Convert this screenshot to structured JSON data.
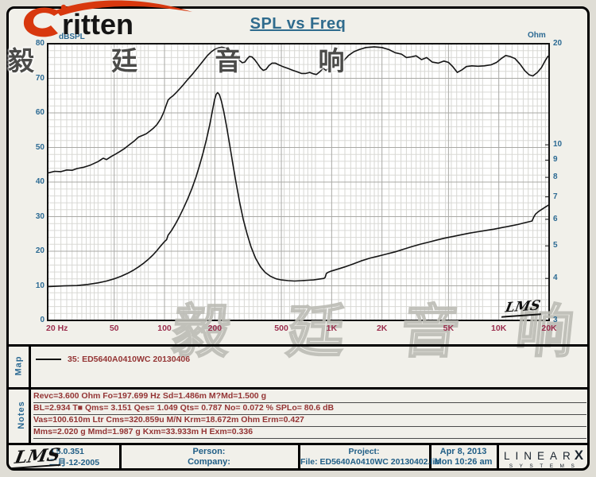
{
  "brand": {
    "logo_text": "ritten",
    "logo_cjk": "毅 廷 音 响"
  },
  "title": "SPL vs Freq",
  "watermark_text": "毅 廷 音 响",
  "chart_data": {
    "type": "line",
    "title": "SPL vs Freq",
    "grid": true,
    "corner_mark": "LMS",
    "x_axis": {
      "scale": "log",
      "unit": "Hz",
      "min": 20,
      "max": 20000,
      "tick_labels": [
        {
          "f": 20,
          "text": "20 Hz"
        },
        {
          "f": 50,
          "text": "50"
        },
        {
          "f": 100,
          "text": "100"
        },
        {
          "f": 200,
          "text": "200"
        },
        {
          "f": 500,
          "text": "500"
        },
        {
          "f": 1000,
          "text": "1K"
        },
        {
          "f": 2000,
          "text": "2K"
        },
        {
          "f": 5000,
          "text": "5K"
        },
        {
          "f": 10000,
          "text": "10K"
        },
        {
          "f": 20000,
          "text": "20K"
        }
      ],
      "major_lines": [
        50,
        100,
        200,
        500,
        1000,
        2000,
        5000,
        10000
      ]
    },
    "y_left": {
      "label": "dBSPL",
      "scale": "linear",
      "min": 0,
      "max": 80,
      "ticks": [
        80,
        70,
        60,
        50,
        40,
        30,
        20,
        10,
        0
      ],
      "minor_step": 2,
      "major_step": 10
    },
    "y_right": {
      "label": "Ohm",
      "scale": "log",
      "min": 3,
      "max": 20,
      "ticks": [
        20,
        10,
        9,
        8,
        7,
        6,
        5,
        4,
        3
      ]
    },
    "series": [
      {
        "name": "35: ED5640A0410WC 20130406 - SPL",
        "axis": "left",
        "color": "#151515",
        "points": [
          [
            20,
            42.6
          ],
          [
            22,
            43.1
          ],
          [
            24,
            43.0
          ],
          [
            26,
            43.5
          ],
          [
            28,
            43.4
          ],
          [
            30,
            43.9
          ],
          [
            33,
            44.3
          ],
          [
            36,
            44.9
          ],
          [
            40,
            45.9
          ],
          [
            43,
            46.9
          ],
          [
            45,
            46.5
          ],
          [
            48,
            47.4
          ],
          [
            51,
            48.1
          ],
          [
            54,
            48.8
          ],
          [
            58,
            49.8
          ],
          [
            62,
            50.9
          ],
          [
            66,
            51.9
          ],
          [
            70,
            53.0
          ],
          [
            74,
            53.5
          ],
          [
            78,
            54.0
          ],
          [
            82,
            54.8
          ],
          [
            86,
            55.6
          ],
          [
            90,
            56.6
          ],
          [
            95,
            58.3
          ],
          [
            99,
            60.2
          ],
          [
            102,
            62.0
          ],
          [
            105,
            63.7
          ],
          [
            108,
            64.3
          ],
          [
            112,
            64.9
          ],
          [
            117,
            65.8
          ],
          [
            123,
            66.9
          ],
          [
            130,
            68.2
          ],
          [
            138,
            69.7
          ],
          [
            147,
            71.2
          ],
          [
            157,
            72.9
          ],
          [
            168,
            74.7
          ],
          [
            180,
            76.5
          ],
          [
            190,
            77.6
          ],
          [
            200,
            78.4
          ],
          [
            210,
            78.8
          ],
          [
            220,
            79.0
          ],
          [
            232,
            78.8
          ],
          [
            245,
            78.3
          ],
          [
            258,
            77.5
          ],
          [
            270,
            76.4
          ],
          [
            282,
            75.1
          ],
          [
            292,
            74.5
          ],
          [
            302,
            74.7
          ],
          [
            312,
            75.6
          ],
          [
            322,
            76.3
          ],
          [
            333,
            76.2
          ],
          [
            346,
            75.4
          ],
          [
            360,
            74.3
          ],
          [
            375,
            73.0
          ],
          [
            390,
            72.3
          ],
          [
            405,
            72.6
          ],
          [
            422,
            73.7
          ],
          [
            440,
            74.4
          ],
          [
            460,
            74.4
          ],
          [
            482,
            73.9
          ],
          [
            510,
            73.4
          ],
          [
            545,
            72.9
          ],
          [
            580,
            72.4
          ],
          [
            620,
            71.9
          ],
          [
            660,
            71.4
          ],
          [
            700,
            71.4
          ],
          [
            740,
            71.7
          ],
          [
            775,
            71.3
          ],
          [
            810,
            71.1
          ],
          [
            850,
            71.9
          ],
          [
            890,
            72.9
          ],
          [
            925,
            72.3
          ],
          [
            965,
            73.0
          ],
          [
            1010,
            74.1
          ],
          [
            1060,
            74.5
          ],
          [
            1120,
            75.2
          ],
          [
            1180,
            75.1
          ],
          [
            1260,
            76.6
          ],
          [
            1360,
            77.7
          ],
          [
            1460,
            78.3
          ],
          [
            1600,
            78.9
          ],
          [
            1800,
            79.1
          ],
          [
            2000,
            78.9
          ],
          [
            2200,
            78.3
          ],
          [
            2400,
            77.4
          ],
          [
            2620,
            77.0
          ],
          [
            2800,
            76.0
          ],
          [
            3000,
            76.2
          ],
          [
            3200,
            76.5
          ],
          [
            3450,
            75.4
          ],
          [
            3700,
            76.0
          ],
          [
            4000,
            74.7
          ],
          [
            4350,
            74.4
          ],
          [
            4700,
            75.0
          ],
          [
            5000,
            74.6
          ],
          [
            5300,
            73.4
          ],
          [
            5650,
            71.7
          ],
          [
            6000,
            72.4
          ],
          [
            6400,
            73.4
          ],
          [
            6900,
            73.6
          ],
          [
            7500,
            73.5
          ],
          [
            8200,
            73.6
          ],
          [
            9000,
            73.9
          ],
          [
            9700,
            74.6
          ],
          [
            10400,
            75.8
          ],
          [
            11000,
            76.6
          ],
          [
            11700,
            76.3
          ],
          [
            12500,
            75.7
          ],
          [
            13400,
            74.1
          ],
          [
            14300,
            72.2
          ],
          [
            15200,
            71.0
          ],
          [
            16000,
            70.7
          ],
          [
            17000,
            71.7
          ],
          [
            18000,
            73.1
          ],
          [
            19000,
            75.2
          ],
          [
            19700,
            76.4
          ],
          [
            20000,
            76.5
          ]
        ]
      },
      {
        "name": "35: ED5640A0410WC 20130406 - Impedance",
        "axis": "right",
        "color": "#151515",
        "points": [
          [
            20,
            3.78
          ],
          [
            25,
            3.8
          ],
          [
            30,
            3.81
          ],
          [
            35,
            3.84
          ],
          [
            40,
            3.88
          ],
          [
            45,
            3.93
          ],
          [
            50,
            3.99
          ],
          [
            55,
            4.06
          ],
          [
            60,
            4.14
          ],
          [
            65,
            4.23
          ],
          [
            70,
            4.33
          ],
          [
            75,
            4.44
          ],
          [
            80,
            4.56
          ],
          [
            85,
            4.69
          ],
          [
            90,
            4.84
          ],
          [
            95,
            5.0
          ],
          [
            100,
            5.15
          ],
          [
            103,
            5.22
          ],
          [
            105,
            5.38
          ],
          [
            110,
            5.55
          ],
          [
            116,
            5.8
          ],
          [
            123,
            6.12
          ],
          [
            130,
            6.48
          ],
          [
            138,
            6.92
          ],
          [
            146,
            7.42
          ],
          [
            154,
            8.0
          ],
          [
            162,
            8.68
          ],
          [
            170,
            9.45
          ],
          [
            178,
            10.35
          ],
          [
            186,
            11.4
          ],
          [
            193,
            12.55
          ],
          [
            199,
            13.6
          ],
          [
            204,
            14.15
          ],
          [
            208,
            14.3
          ],
          [
            213,
            14.1
          ],
          [
            219,
            13.5
          ],
          [
            226,
            12.6
          ],
          [
            235,
            11.35
          ],
          [
            245,
            10.05
          ],
          [
            256,
            8.8
          ],
          [
            268,
            7.7
          ],
          [
            282,
            6.72
          ],
          [
            296,
            6.0
          ],
          [
            312,
            5.42
          ],
          [
            330,
            4.95
          ],
          [
            350,
            4.6
          ],
          [
            375,
            4.33
          ],
          [
            400,
            4.17
          ],
          [
            430,
            4.06
          ],
          [
            465,
            3.99
          ],
          [
            500,
            3.96
          ],
          [
            550,
            3.94
          ],
          [
            600,
            3.93
          ],
          [
            660,
            3.94
          ],
          [
            720,
            3.95
          ],
          [
            780,
            3.96
          ],
          [
            840,
            3.98
          ],
          [
            900,
            4.0
          ],
          [
            915,
            4.03
          ],
          [
            930,
            4.14
          ],
          [
            960,
            4.18
          ],
          [
            1000,
            4.21
          ],
          [
            1100,
            4.27
          ],
          [
            1200,
            4.33
          ],
          [
            1350,
            4.42
          ],
          [
            1500,
            4.51
          ],
          [
            1700,
            4.6
          ],
          [
            1900,
            4.66
          ],
          [
            2100,
            4.72
          ],
          [
            2400,
            4.8
          ],
          [
            2700,
            4.89
          ],
          [
            3000,
            4.97
          ],
          [
            3400,
            5.06
          ],
          [
            3800,
            5.13
          ],
          [
            4300,
            5.21
          ],
          [
            4800,
            5.28
          ],
          [
            5400,
            5.34
          ],
          [
            6000,
            5.4
          ],
          [
            6700,
            5.46
          ],
          [
            7500,
            5.51
          ],
          [
            8400,
            5.56
          ],
          [
            9400,
            5.61
          ],
          [
            10500,
            5.67
          ],
          [
            11700,
            5.73
          ],
          [
            13000,
            5.79
          ],
          [
            14500,
            5.87
          ],
          [
            15800,
            5.93
          ],
          [
            16200,
            6.1
          ],
          [
            16600,
            6.22
          ],
          [
            17300,
            6.33
          ],
          [
            18200,
            6.44
          ],
          [
            19200,
            6.55
          ],
          [
            20000,
            6.63
          ]
        ]
      }
    ]
  },
  "map_panel": {
    "label": "Map",
    "legend_text": "35: ED5640A0410WC   20130406"
  },
  "notes_panel": {
    "label": "Notes",
    "lines": [
      "Revc=3.600 Ohm  Fo=197.699 Hz  Sd=1.486m M?Md=1.500 g",
      "BL=2.934 T■  Qms= 3.151  Qes= 1.049  Qts= 0.787  No= 0.072 %  SPLo= 80.6 dB",
      "Vas=100.610m Ltr  Cms=320.859u M/N  Krm=18.672m Ohm  Erm=0.427",
      "Mms=2.020 g  Mmd=1.987 g  Kxm=33.933m H  Exm=0.336"
    ]
  },
  "footer": {
    "lms_script": "LMS",
    "version": "4.5.0.351",
    "release_date": "二月-12-2005",
    "person_label": "Person:",
    "company_label": "Company:",
    "project_label": "Project:",
    "file_line": "File: ED5640A0410WC  20130402.lib",
    "date": "Apr  8, 2013",
    "time": "Mon 10:26 am",
    "linearx_word": "LINEAR",
    "linearx_x": "X",
    "linearx_sub": "SYSTEMS"
  }
}
